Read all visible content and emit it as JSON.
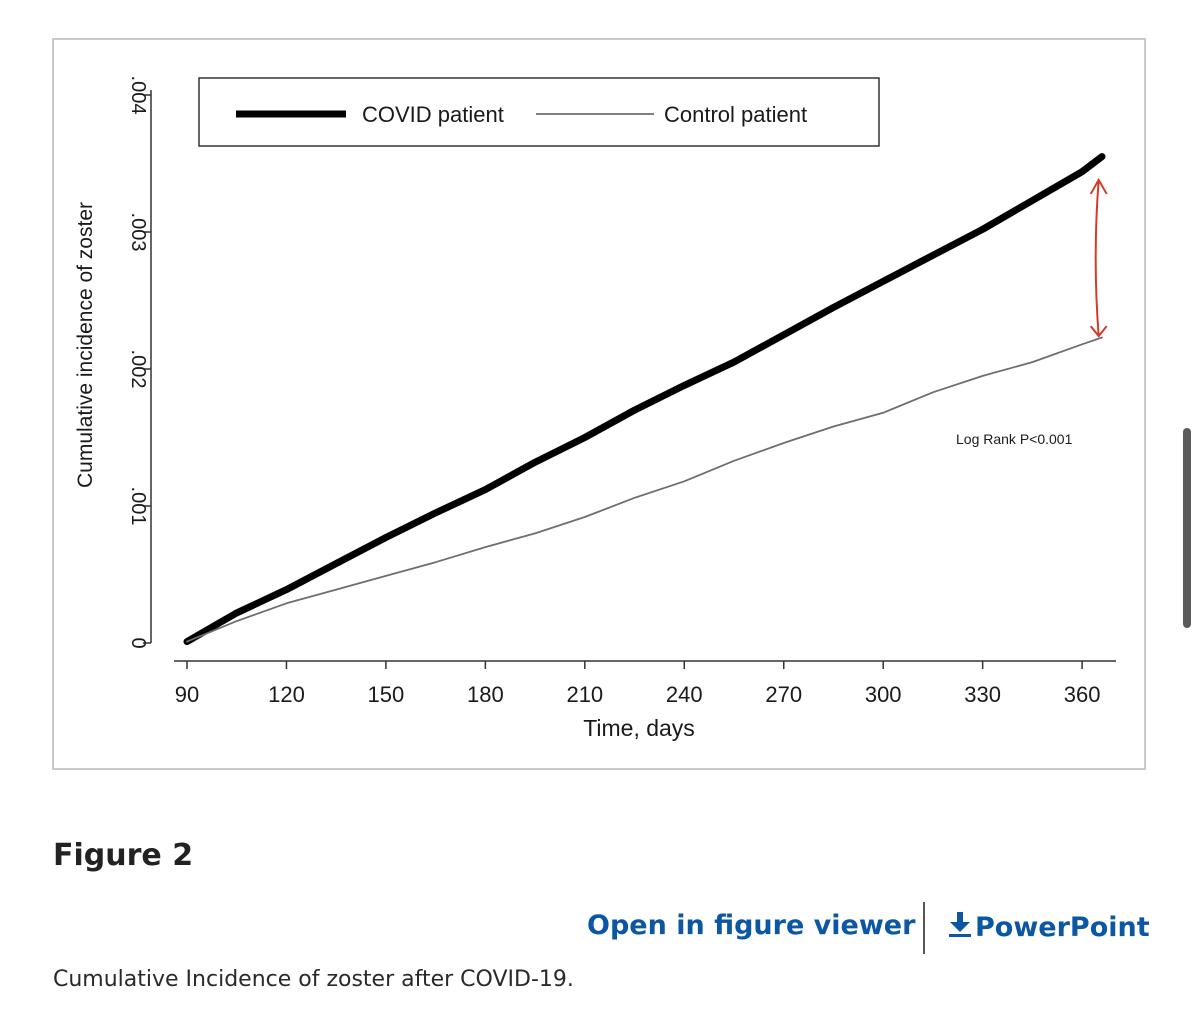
{
  "figure": {
    "label": "Figure 2",
    "caption": "Cumulative Incidence of zoster after COVID-19."
  },
  "actions": {
    "open_viewer_label": "Open in figure viewer",
    "powerpoint_label": "PowerPoint",
    "link_color": "#0b57a4",
    "powerpoint_icon": "download-icon"
  },
  "chart_data": {
    "type": "line",
    "xlabel": "Time, days",
    "ylabel": "Cumulative incidence of zoster",
    "xlim": [
      90,
      366
    ],
    "ylim": [
      0,
      0.004
    ],
    "xticks": [
      90,
      120,
      150,
      180,
      210,
      240,
      270,
      300,
      330,
      360
    ],
    "yticks": [
      0,
      0.001,
      0.002,
      0.003,
      0.004
    ],
    "ytick_labels": [
      "0",
      ".001",
      ".002",
      ".003",
      ".004"
    ],
    "grid": false,
    "legend": {
      "position": "top",
      "frame": true
    },
    "annotation": "Log Rank P<0.001",
    "series": [
      {
        "name": "COVID patient",
        "color": "#000000",
        "style": "thick",
        "x": [
          90,
          105,
          120,
          135,
          150,
          165,
          180,
          195,
          210,
          225,
          240,
          255,
          270,
          285,
          300,
          315,
          330,
          345,
          360,
          366
        ],
        "y": [
          1e-05,
          0.00022,
          0.00039,
          0.00058,
          0.00077,
          0.00095,
          0.00112,
          0.00132,
          0.0015,
          0.0017,
          0.00188,
          0.00205,
          0.00225,
          0.00245,
          0.00264,
          0.00283,
          0.00302,
          0.00323,
          0.00344,
          0.00355
        ]
      },
      {
        "name": "Control patient",
        "color": "#6e6e6e",
        "style": "thin",
        "x": [
          90,
          105,
          120,
          135,
          150,
          165,
          180,
          195,
          210,
          225,
          240,
          255,
          270,
          285,
          300,
          315,
          330,
          345,
          360,
          366
        ],
        "y": [
          1e-05,
          0.00016,
          0.00029,
          0.00039,
          0.00049,
          0.00059,
          0.0007,
          0.0008,
          0.00092,
          0.00106,
          0.00118,
          0.00133,
          0.00146,
          0.00158,
          0.00168,
          0.00183,
          0.00195,
          0.00205,
          0.00218,
          0.00223
        ]
      }
    ],
    "overlay": {
      "type": "double-arrow",
      "color": "#d43b2c",
      "x": 365,
      "y_from": 0.00224,
      "y_to": 0.00338
    }
  }
}
